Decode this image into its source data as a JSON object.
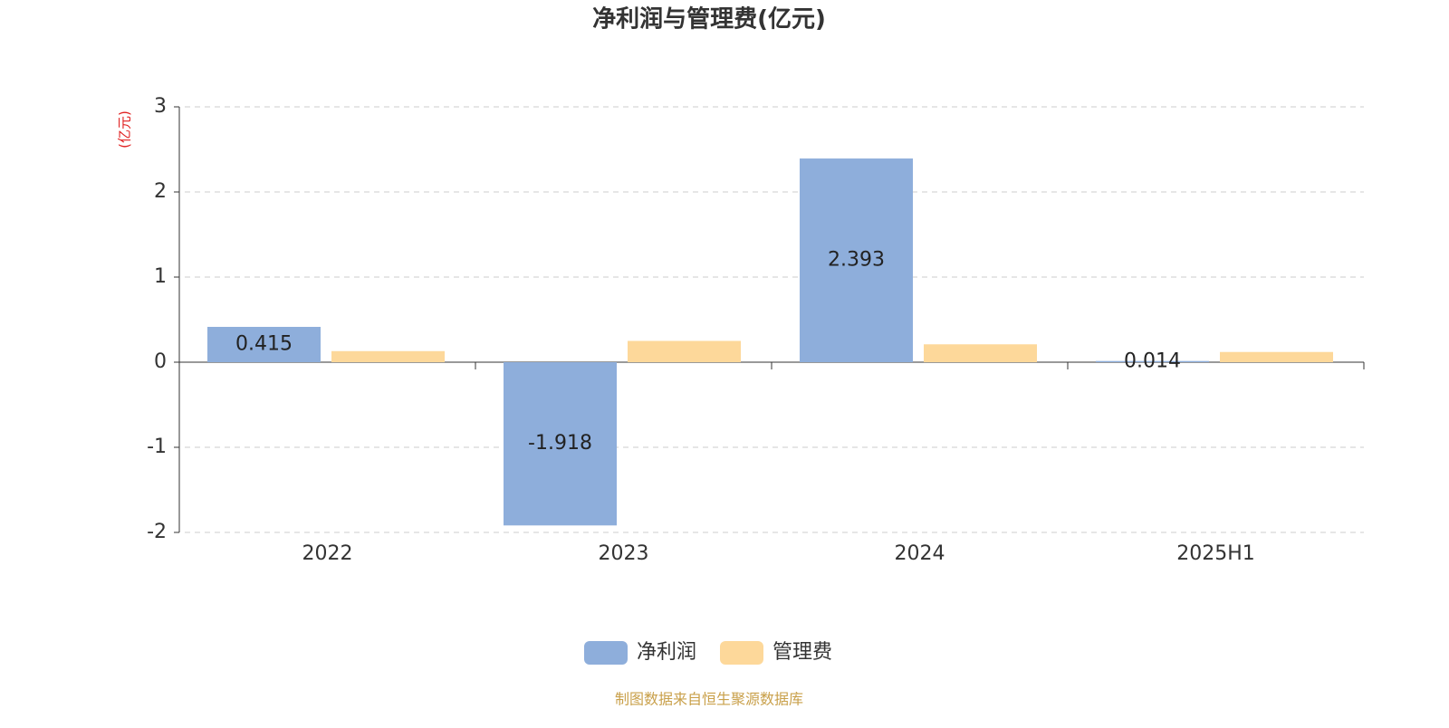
{
  "chart_data": {
    "type": "bar",
    "title": "净利润与管理费(亿元)",
    "y_label": "(亿元)",
    "categories": [
      "2022",
      "2023",
      "2024",
      "2025H1"
    ],
    "series": [
      {
        "name": "净利润",
        "color": "#8eaedb",
        "values": [
          0.415,
          -1.918,
          2.393,
          0.014
        ],
        "value_labels": [
          "0.415",
          "-1.918",
          "2.393",
          "0.014"
        ]
      },
      {
        "name": "管理费",
        "color": "#fdd89a",
        "values": [
          0.13,
          0.25,
          0.21,
          0.12
        ]
      }
    ],
    "ylim": [
      -2,
      3
    ],
    "yticks": [
      -2,
      -1,
      0,
      1,
      2,
      3
    ],
    "grid": true,
    "legend": "bottom",
    "source": "制图数据来自恒生聚源数据库"
  }
}
